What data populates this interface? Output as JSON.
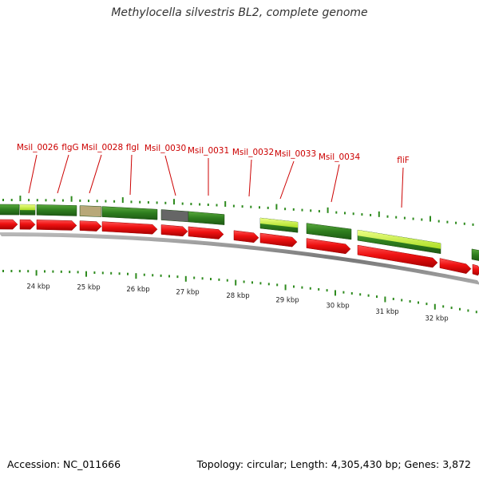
{
  "title": "Methylocella silvestris BL2, complete genome",
  "footer": {
    "accession": "Accession: NC_011666",
    "summary": "Topology: circular; Length: 4,305,430 bp; Genes: 3,872"
  },
  "colors": {
    "gene_label": "#cc0000",
    "cds_arrow": "#ee1111",
    "feature_dark": "#2e7d1e",
    "feature_light": "#ccee44",
    "tick": "#2e8b1e",
    "backbone": "#888888"
  },
  "gene_labels": [
    "Msil_0026",
    "flgG",
    "Msil_0028",
    "flgI",
    "Msil_0030",
    "Msil_0031",
    "Msil_0032",
    "Msil_0033",
    "Msil_0034",
    "fliF"
  ],
  "kbp_labels": [
    "24 kbp",
    "25 kbp",
    "26 kbp",
    "27 kbp",
    "28 kbp",
    "29 kbp",
    "30 kbp",
    "31 kbp",
    "32 kbp"
  ]
}
